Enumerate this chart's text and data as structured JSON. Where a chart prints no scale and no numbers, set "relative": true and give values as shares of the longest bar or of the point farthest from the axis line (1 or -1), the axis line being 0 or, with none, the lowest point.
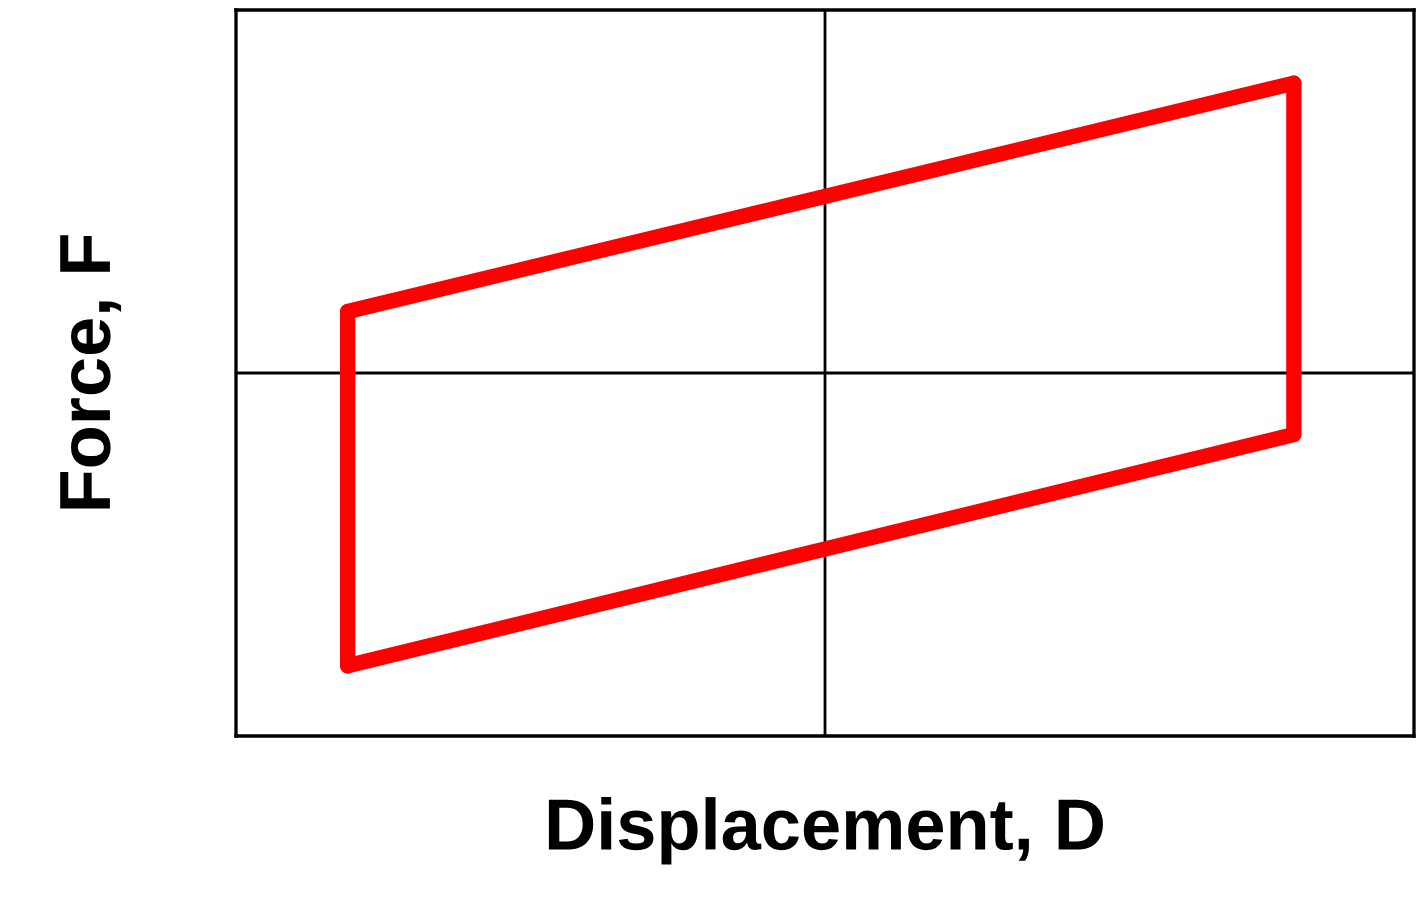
{
  "chart_data": {
    "type": "line",
    "relative": true,
    "xlabel": "Displacement, D",
    "ylabel": "Force, F",
    "categories": [
      null,
      null
    ],
    "series": [
      {
        "color": "#ff0000",
        "values": [
          0.21,
          0.99
        ]
      },
      {
        "color": "#ff0000",
        "values": [
          -1,
          -0.21
        ]
      }
    ],
    "tick_labels": false
  }
}
